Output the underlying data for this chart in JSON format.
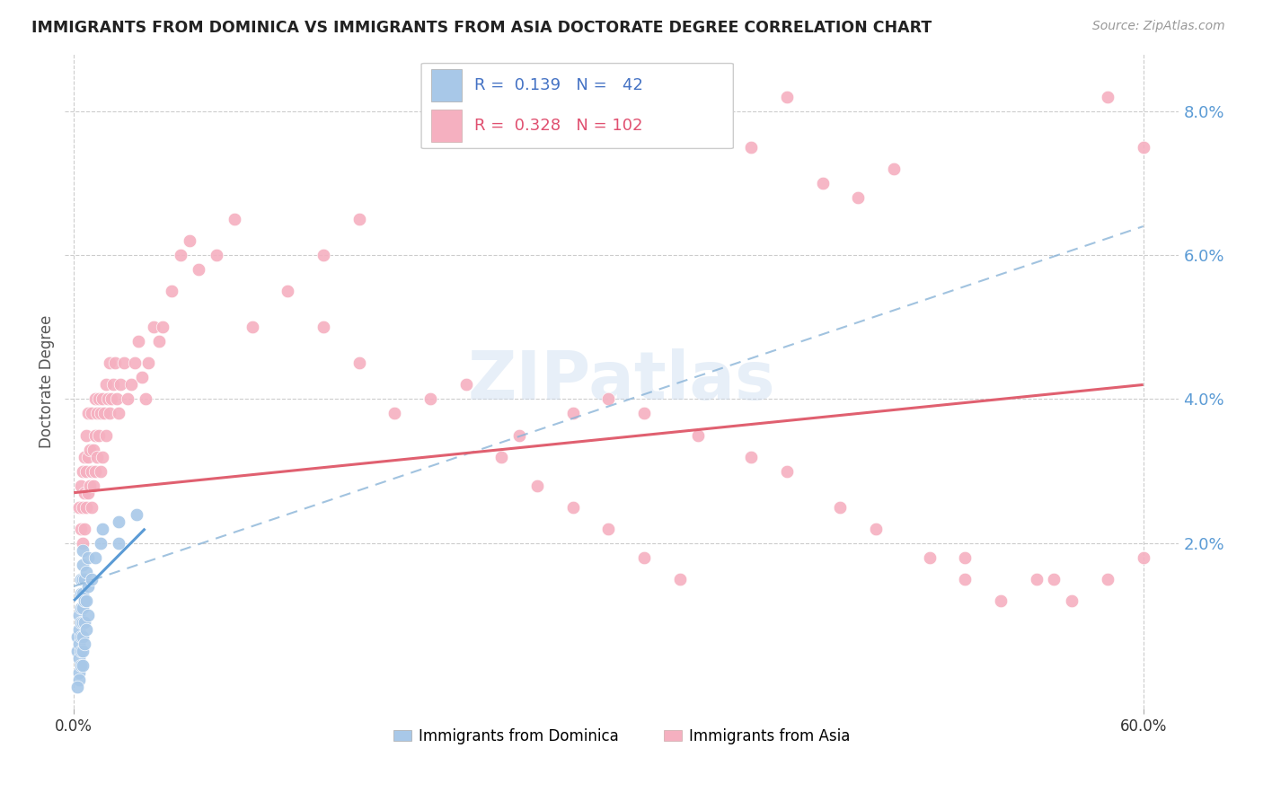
{
  "title": "IMMIGRANTS FROM DOMINICA VS IMMIGRANTS FROM ASIA DOCTORATE DEGREE CORRELATION CHART",
  "source": "Source: ZipAtlas.com",
  "ylabel": "Doctorate Degree",
  "xlim": [
    -0.005,
    0.62
  ],
  "ylim": [
    -0.003,
    0.088
  ],
  "yticks": [
    0.0,
    0.02,
    0.04,
    0.06,
    0.08
  ],
  "ytick_labels": [
    "",
    "2.0%",
    "4.0%",
    "6.0%",
    "8.0%"
  ],
  "xticks": [
    0.0,
    0.6
  ],
  "xtick_labels": [
    "0.0%",
    "60.0%"
  ],
  "R_dominica": 0.139,
  "N_dominica": 42,
  "R_asia": 0.328,
  "N_asia": 102,
  "color_dominica": "#a8c8e8",
  "color_asia": "#f5b0c0",
  "line_color_dominica": "#5b9bd5",
  "line_color_asia": "#e06070",
  "watermark": "ZIPatlas",
  "dominica_x": [
    0.002,
    0.002,
    0.003,
    0.003,
    0.003,
    0.003,
    0.003,
    0.004,
    0.004,
    0.004,
    0.004,
    0.004,
    0.004,
    0.004,
    0.005,
    0.005,
    0.005,
    0.005,
    0.005,
    0.005,
    0.005,
    0.005,
    0.005,
    0.006,
    0.006,
    0.006,
    0.006,
    0.007,
    0.007,
    0.007,
    0.008,
    0.008,
    0.008,
    0.01,
    0.012,
    0.015,
    0.016,
    0.025,
    0.025,
    0.035,
    0.003,
    0.002
  ],
  "dominica_y": [
    0.005,
    0.007,
    0.002,
    0.004,
    0.006,
    0.008,
    0.01,
    0.003,
    0.005,
    0.007,
    0.009,
    0.011,
    0.013,
    0.015,
    0.003,
    0.005,
    0.007,
    0.009,
    0.011,
    0.013,
    0.015,
    0.017,
    0.019,
    0.006,
    0.009,
    0.012,
    0.015,
    0.008,
    0.012,
    0.016,
    0.01,
    0.014,
    0.018,
    0.015,
    0.018,
    0.02,
    0.022,
    0.02,
    0.023,
    0.024,
    0.001,
    0.0
  ],
  "asia_x": [
    0.003,
    0.004,
    0.004,
    0.005,
    0.005,
    0.005,
    0.006,
    0.006,
    0.006,
    0.007,
    0.007,
    0.007,
    0.008,
    0.008,
    0.008,
    0.009,
    0.009,
    0.01,
    0.01,
    0.01,
    0.011,
    0.011,
    0.012,
    0.012,
    0.012,
    0.013,
    0.013,
    0.014,
    0.014,
    0.015,
    0.015,
    0.016,
    0.016,
    0.017,
    0.018,
    0.018,
    0.019,
    0.02,
    0.02,
    0.021,
    0.022,
    0.023,
    0.024,
    0.025,
    0.026,
    0.028,
    0.03,
    0.032,
    0.034,
    0.036,
    0.038,
    0.04,
    0.042,
    0.045,
    0.048,
    0.05,
    0.055,
    0.06,
    0.065,
    0.07,
    0.08,
    0.09,
    0.1,
    0.12,
    0.14,
    0.16,
    0.18,
    0.2,
    0.22,
    0.25,
    0.28,
    0.3,
    0.32,
    0.35,
    0.38,
    0.4,
    0.43,
    0.45,
    0.48,
    0.5,
    0.52,
    0.54,
    0.56,
    0.58,
    0.6,
    0.38,
    0.4,
    0.42,
    0.44,
    0.46,
    0.24,
    0.26,
    0.28,
    0.3,
    0.32,
    0.34,
    0.14,
    0.16,
    0.5,
    0.55,
    0.58,
    0.6
  ],
  "asia_y": [
    0.025,
    0.022,
    0.028,
    0.02,
    0.025,
    0.03,
    0.022,
    0.027,
    0.032,
    0.025,
    0.03,
    0.035,
    0.027,
    0.032,
    0.038,
    0.028,
    0.033,
    0.025,
    0.03,
    0.038,
    0.028,
    0.033,
    0.03,
    0.035,
    0.04,
    0.032,
    0.038,
    0.035,
    0.04,
    0.03,
    0.038,
    0.032,
    0.04,
    0.038,
    0.035,
    0.042,
    0.04,
    0.038,
    0.045,
    0.04,
    0.042,
    0.045,
    0.04,
    0.038,
    0.042,
    0.045,
    0.04,
    0.042,
    0.045,
    0.048,
    0.043,
    0.04,
    0.045,
    0.05,
    0.048,
    0.05,
    0.055,
    0.06,
    0.062,
    0.058,
    0.06,
    0.065,
    0.05,
    0.055,
    0.06,
    0.065,
    0.038,
    0.04,
    0.042,
    0.035,
    0.038,
    0.04,
    0.038,
    0.035,
    0.032,
    0.03,
    0.025,
    0.022,
    0.018,
    0.015,
    0.012,
    0.015,
    0.012,
    0.015,
    0.018,
    0.075,
    0.082,
    0.07,
    0.068,
    0.072,
    0.032,
    0.028,
    0.025,
    0.022,
    0.018,
    0.015,
    0.05,
    0.045,
    0.018,
    0.015,
    0.082,
    0.075
  ]
}
